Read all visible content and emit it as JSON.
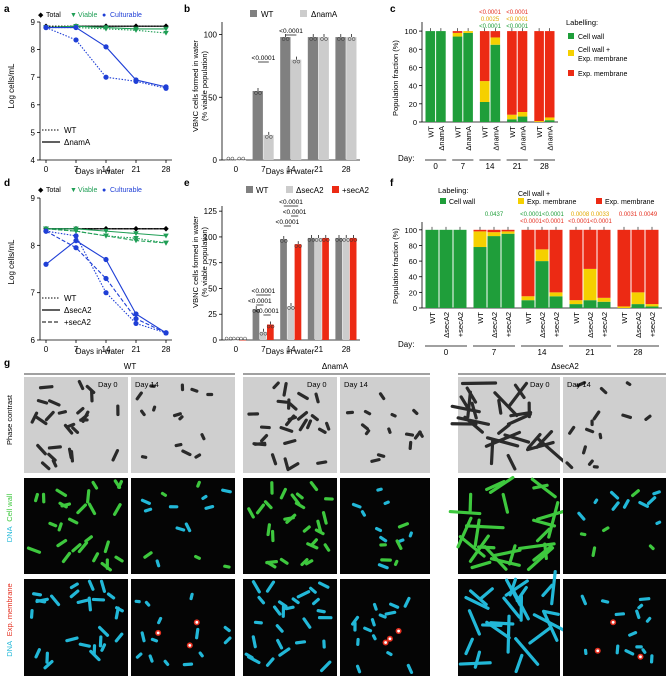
{
  "chart_data": [
    {
      "panel": "a",
      "type": "line",
      "xlabel": "Days in water",
      "ylabel": "Log cells/mL",
      "x": [
        0,
        7,
        14,
        21,
        28
      ],
      "xticks": [
        "0",
        "7",
        "14",
        "21",
        "28"
      ],
      "ylim": [
        4,
        9
      ],
      "yticks": [
        "4",
        "5",
        "6",
        "7",
        "8",
        "9"
      ],
      "legend_markers": [
        "Total",
        "Viable",
        "Culturable"
      ],
      "legend_lines": [
        "WT",
        "ΔnamA"
      ],
      "colors": {
        "Total": "#000000",
        "Viable": "#1f9e55",
        "Culturable": "#1f3fd6"
      },
      "series": [
        {
          "name": "Total",
          "strain": "WT",
          "values": [
            8.85,
            8.85,
            8.85,
            8.85,
            8.85
          ]
        },
        {
          "name": "Total",
          "strain": "ΔnamA",
          "values": [
            8.8,
            8.85,
            8.85,
            8.85,
            8.85
          ]
        },
        {
          "name": "Viable",
          "strain": "WT",
          "values": [
            8.8,
            8.8,
            8.75,
            8.7,
            8.6
          ]
        },
        {
          "name": "Viable",
          "strain": "ΔnamA",
          "values": [
            8.8,
            8.85,
            8.8,
            8.75,
            8.75
          ]
        },
        {
          "name": "Culturable",
          "strain": "WT",
          "values": [
            8.8,
            8.35,
            7.0,
            6.85,
            6.6
          ]
        },
        {
          "name": "Culturable",
          "strain": "ΔnamA",
          "values": [
            8.8,
            8.8,
            8.1,
            6.9,
            6.65
          ]
        }
      ]
    },
    {
      "panel": "b",
      "type": "bar",
      "xlabel": "Days in water",
      "ylabel": "VBNC cells formed in water\n(% viable population)",
      "categories": [
        "0",
        "7",
        "14",
        "21",
        "28"
      ],
      "ylim": [
        0,
        110
      ],
      "yticks": [
        "0",
        "50",
        "100"
      ],
      "series": [
        {
          "name": "WT",
          "color": "#808080",
          "values": [
            0,
            55,
            98,
            98,
            98
          ]
        },
        {
          "name": "ΔnamA",
          "color": "#cccccc",
          "values": [
            0,
            20,
            80,
            98,
            98
          ]
        }
      ],
      "annotations": [
        "<0.0001",
        "<0.0001"
      ]
    },
    {
      "panel": "c",
      "type": "bar",
      "ylabel": "Population fraction (%)",
      "ylim": [
        0,
        110
      ],
      "yticks": [
        "0",
        "20",
        "40",
        "60",
        "80",
        "100"
      ],
      "categories": [
        "WT",
        "ΔnamA",
        "WT",
        "ΔnamA",
        "WT",
        "ΔnamA",
        "WT",
        "ΔnamA",
        "WT",
        "ΔnamA"
      ],
      "day_label": "Day:",
      "days": [
        "0",
        "7",
        "14",
        "21",
        "28"
      ],
      "legend_title": "Labelling:",
      "series": [
        {
          "name": "Cell wall",
          "color": "#1f9e3a",
          "values": [
            100,
            100,
            94,
            98,
            22,
            85,
            3,
            6,
            0,
            2
          ]
        },
        {
          "name": "Cell wall + Exp. membrane",
          "color": "#f5d000",
          "values": [
            0,
            0,
            4,
            2,
            23,
            8,
            5,
            5,
            1,
            3
          ]
        },
        {
          "name": "Exp. membrane",
          "color": "#ec2a14",
          "values": [
            0,
            0,
            2,
            0,
            55,
            7,
            92,
            89,
            99,
            95
          ]
        }
      ],
      "pvalue_groups": [
        {
          "day": "14",
          "lines": [
            "<0.0001",
            "0.0025",
            "<0.0001"
          ]
        },
        {
          "day": "21",
          "lines": [
            "<0.0001",
            "<0.0001",
            "<0.0001"
          ]
        }
      ]
    },
    {
      "panel": "d",
      "type": "line",
      "xlabel": "Days in water",
      "ylabel": "Log cells/mL",
      "x": [
        0,
        7,
        14,
        21,
        28
      ],
      "xticks": [
        "0",
        "7",
        "14",
        "21",
        "28"
      ],
      "ylim": [
        6,
        9
      ],
      "yticks": [
        "6",
        "7",
        "8",
        "9"
      ],
      "legend_markers": [
        "Total",
        "Viable",
        "Culturable"
      ],
      "legend_lines": [
        "WT",
        "ΔsecA2",
        "+secA2"
      ],
      "series": [
        {
          "name": "Total",
          "strain": "WT",
          "values": [
            8.35,
            8.35,
            8.35,
            8.35,
            8.35
          ]
        },
        {
          "name": "Total",
          "strain": "ΔsecA2",
          "values": [
            8.35,
            8.35,
            8.35,
            8.35,
            8.35
          ]
        },
        {
          "name": "Total",
          "strain": "+secA2",
          "values": [
            8.35,
            8.35,
            8.35,
            8.35,
            8.35
          ]
        },
        {
          "name": "Viable",
          "strain": "WT",
          "values": [
            8.35,
            8.3,
            8.2,
            8.15,
            8.05
          ]
        },
        {
          "name": "Viable",
          "strain": "ΔsecA2",
          "values": [
            8.35,
            8.35,
            8.3,
            8.25,
            8.2
          ]
        },
        {
          "name": "Viable",
          "strain": "+secA2",
          "values": [
            8.35,
            8.3,
            8.2,
            8.1,
            8.05
          ]
        },
        {
          "name": "Culturable",
          "strain": "WT",
          "values": [
            8.3,
            8.2,
            7.0,
            6.35,
            6.15
          ]
        },
        {
          "name": "Culturable",
          "strain": "ΔsecA2",
          "values": [
            7.6,
            8.1,
            7.7,
            6.55,
            6.15
          ]
        },
        {
          "name": "Culturable",
          "strain": "+secA2",
          "values": [
            8.3,
            7.95,
            7.3,
            6.45,
            6.15
          ]
        }
      ]
    },
    {
      "panel": "e",
      "type": "bar",
      "xlabel": "Days in water",
      "ylabel": "VBNC cells formed in water\n(% viable population)",
      "categories": [
        "0",
        "7",
        "14",
        "21",
        "28"
      ],
      "ylim": [
        0,
        130
      ],
      "yticks": [
        "0",
        "25",
        "50",
        "75",
        "100",
        "125"
      ],
      "series": [
        {
          "name": "WT",
          "color": "#808080",
          "values": [
            0,
            30,
            98,
            99,
            99
          ]
        },
        {
          "name": "ΔsecA2",
          "color": "#cccccc",
          "values": [
            0,
            8,
            33,
            99,
            99
          ]
        },
        {
          "name": "+secA2",
          "color": "#ec2a14",
          "values": [
            0,
            15,
            93,
            99,
            99
          ]
        }
      ],
      "annotations": [
        "<0.0001",
        "<0.0001",
        "<0.0001",
        "<0.0001",
        "<0.0001",
        "<0.0001"
      ]
    },
    {
      "panel": "f",
      "type": "bar",
      "ylabel": "Population fraction (%)",
      "ylim": [
        0,
        110
      ],
      "yticks": [
        "0",
        "20",
        "40",
        "60",
        "80",
        "100"
      ],
      "categories": [
        "WT",
        "ΔsecA2",
        "+secA2",
        "WT",
        "ΔsecA2",
        "+secA2",
        "WT",
        "ΔsecA2",
        "+secA2",
        "WT",
        "ΔsecA2",
        "+secA2",
        "WT",
        "ΔsecA2",
        "+secA2"
      ],
      "day_label": "Day:",
      "days": [
        "0",
        "7",
        "14",
        "21",
        "28"
      ],
      "legend_title": "Labeling:",
      "series": [
        {
          "name": "Cell wall",
          "color": "#1f9e3a",
          "values": [
            100,
            100,
            100,
            78,
            92,
            95,
            10,
            60,
            15,
            5,
            10,
            8,
            0,
            5,
            2
          ]
        },
        {
          "name": "Cell wall + Exp. membrane",
          "color": "#f5d000",
          "values": [
            0,
            0,
            0,
            20,
            5,
            3,
            5,
            15,
            5,
            5,
            40,
            5,
            2,
            15,
            3
          ]
        },
        {
          "name": "Exp. membrane",
          "color": "#ec2a14",
          "values": [
            0,
            0,
            0,
            2,
            3,
            2,
            85,
            25,
            80,
            90,
            50,
            87,
            98,
            80,
            95
          ]
        }
      ],
      "pvalue_groups": [
        {
          "day": "7",
          "lines": [
            "0.0437"
          ]
        },
        {
          "day": "14",
          "lines": [
            "<0.0001<0.0001",
            "<0.0001<0.0001"
          ]
        },
        {
          "day": "21",
          "lines": [
            "0.0008 0.0033",
            "<0.0001<0.0001"
          ]
        },
        {
          "day": "28",
          "lines": [
            "0.0031 0.0049"
          ]
        }
      ]
    }
  ],
  "microscopy": {
    "columns": [
      "WT",
      "ΔnamA",
      "ΔsecA2"
    ],
    "day_labels": [
      "Day 0",
      "Day 14"
    ],
    "row_labels": [
      {
        "parts": [
          "Phase contrast"
        ]
      },
      {
        "parts": [
          "DNA",
          "Cell wall"
        ]
      },
      {
        "parts": [
          "DNA",
          "Exp. membrane"
        ]
      }
    ],
    "row_colors": [
      "#000000",
      "#22b8d8",
      "#3ec83e",
      "#22b8d8",
      "#e53020"
    ]
  },
  "panel_letters": [
    "a",
    "b",
    "c",
    "d",
    "e",
    "f",
    "g"
  ]
}
